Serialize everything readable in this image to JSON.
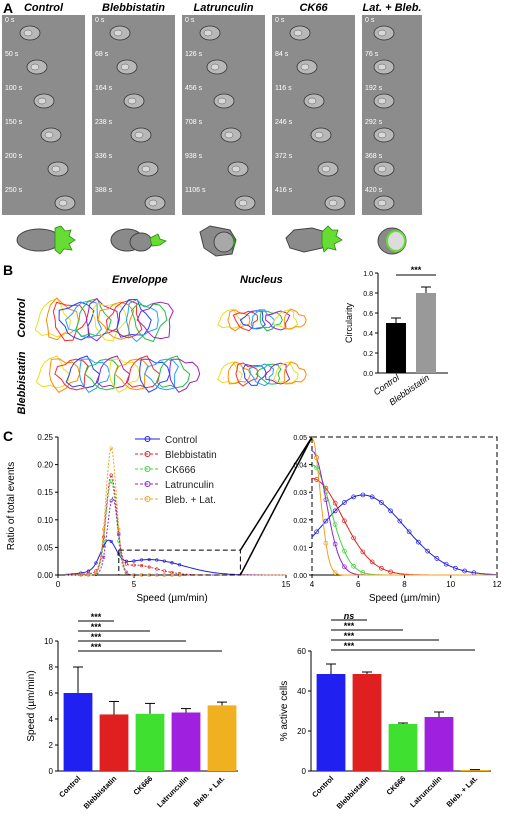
{
  "panelA": {
    "letter": "A",
    "columns": [
      {
        "title": "Control",
        "times": [
          "0 s",
          "50 s",
          "100 s",
          "150 s",
          "200 s",
          "250 s"
        ]
      },
      {
        "title": "Blebbistatin",
        "times": [
          "0 s",
          "68 s",
          "164 s",
          "238 s",
          "336 s",
          "388 s"
        ]
      },
      {
        "title": "Latrunculin",
        "times": [
          "0 s",
          "126 s",
          "456 s",
          "708 s",
          "938 s",
          "1106 s"
        ]
      },
      {
        "title": "CK66",
        "times": [
          "0 s",
          "84 s",
          "116 s",
          "246 s",
          "372 s",
          "416 s"
        ]
      },
      {
        "title": "Lat. + Bleb.",
        "times": [
          "0 s",
          "76 s",
          "192 s",
          "292 s",
          "368 s",
          "420 s"
        ]
      }
    ],
    "colors": {
      "strip": "#8c8c8c",
      "cell_body": "#8a8a8a",
      "protrusion": "#66dd33"
    }
  },
  "panelB": {
    "letter": "B",
    "enveloppe_title": "Enveloppe",
    "nucleus_title": "Nucleus",
    "row_control": "Control",
    "row_bleb": "Blebbistatin",
    "outline_colors": [
      "#e8e020",
      "#ff8c00",
      "#ff2a2a",
      "#2040ff",
      "#20a0ff",
      "#20c040",
      "#a020c0"
    ],
    "chart_data": {
      "type": "bar",
      "categories": [
        "Control",
        "Blebbistatin"
      ],
      "values": [
        0.5,
        0.8
      ],
      "errors": [
        0.05,
        0.06
      ],
      "ylabel": "Circularity",
      "ylim": [
        0,
        1.0
      ],
      "yticks": [
        "0.0",
        "0.2",
        "0.4",
        "0.6",
        "0.8",
        "1.0"
      ],
      "significance": "***",
      "colors": [
        "#000000",
        "#999999"
      ]
    }
  },
  "panelC": {
    "letter": "C",
    "chart_data": [
      {
        "type": "line",
        "ylabel": "Ratio of total events",
        "xlabel": "Speed (µm/min)",
        "xlim": [
          0,
          15
        ],
        "ylim": [
          0,
          0.25
        ],
        "xticks": [
          "0",
          "5",
          "15"
        ],
        "yticks": [
          "0.00",
          "0.05",
          "0.10",
          "0.15",
          "0.20",
          "0.25"
        ],
        "series": [
          {
            "name": "Control",
            "color": "#2020e0",
            "marker": "o",
            "peak_x": 3.3,
            "peak_y": 0.055
          },
          {
            "name": "Blebbistatin",
            "color": "#e02020",
            "marker": "s",
            "peak_x": 3.5,
            "peak_y": 0.17
          },
          {
            "name": "CK666",
            "color": "#40d040",
            "marker": "x",
            "peak_x": 3.5,
            "peak_y": 0.17
          },
          {
            "name": "Latrunculin",
            "color": "#9020d0",
            "marker": "+",
            "peak_x": 3.6,
            "peak_y": 0.14
          },
          {
            "name": "Bleb. + Lat.",
            "color": "#f0a020",
            "marker": "d",
            "peak_x": 3.5,
            "peak_y": 0.23
          }
        ]
      },
      {
        "type": "line",
        "xlabel": "Speed (µm/min)",
        "xlim": [
          4,
          12
        ],
        "ylim": [
          0,
          0.05
        ],
        "xticks": [
          "4",
          "6",
          "8",
          "10",
          "12"
        ],
        "yticks": [
          "0.00",
          "0.01",
          "0.02",
          "0.03",
          "0.04",
          "0.05"
        ]
      },
      {
        "type": "bar",
        "ylabel": "Speed (µm/min)",
        "categories": [
          "Control",
          "Blebbistatin",
          "CK666",
          "Latrunculin",
          "Bleb. + Lat."
        ],
        "values": [
          6.0,
          4.35,
          4.4,
          4.5,
          5.05
        ],
        "errors": [
          2.0,
          1.0,
          0.8,
          0.3,
          0.25
        ],
        "colors": [
          "#2020f0",
          "#e02020",
          "#40e030",
          "#a020e0",
          "#f0b020"
        ],
        "ylim": [
          0,
          10
        ],
        "yticks": [
          "0",
          "2",
          "4",
          "6",
          "8",
          "10"
        ],
        "significance": [
          "***",
          "***",
          "***",
          "***"
        ]
      },
      {
        "type": "bar",
        "ylabel": "% active cells",
        "categories": [
          "Control",
          "Blebbistatin",
          "CK666",
          "Latrunculin",
          "Bleb. + Lat."
        ],
        "values": [
          48.5,
          48.5,
          23.5,
          27.0,
          0.5
        ],
        "errors": [
          5.0,
          1.0,
          0.5,
          2.5,
          0.2
        ],
        "colors": [
          "#2020f0",
          "#e02020",
          "#40e030",
          "#a020e0",
          "#f0b020"
        ],
        "ylim": [
          0,
          60
        ],
        "yticks": [
          "0",
          "20",
          "40",
          "60"
        ],
        "significance": [
          "ns",
          "***",
          "***",
          "***"
        ]
      }
    ]
  }
}
